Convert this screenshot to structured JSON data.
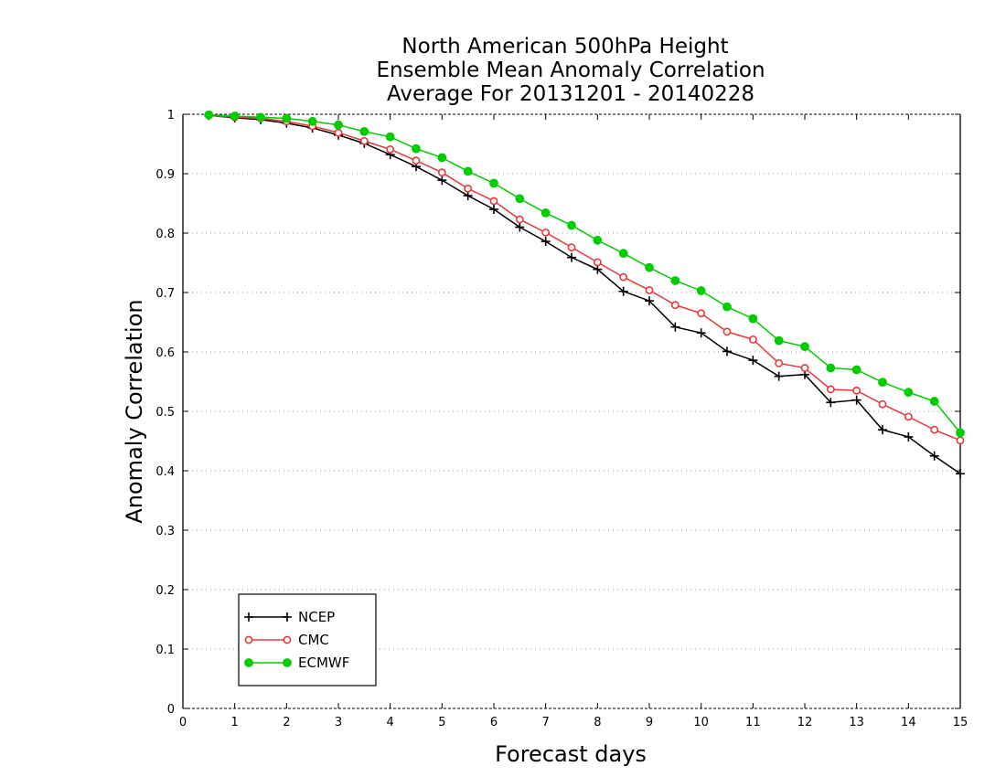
{
  "chart_data": {
    "type": "line",
    "title_lines": [
      "North American 500hPa Height",
      "Ensemble Mean Anomaly Correlation",
      "Average For 20131201 - 20140228"
    ],
    "xlabel": "Forecast days",
    "ylabel": "Anomaly Correlation",
    "xlim": [
      0,
      15
    ],
    "ylim": [
      0,
      1
    ],
    "x_ticks": [
      "0",
      "1",
      "2",
      "3",
      "4",
      "5",
      "6",
      "7",
      "8",
      "9",
      "10",
      "11",
      "12",
      "13",
      "14",
      "15"
    ],
    "y_ticks": [
      "0",
      "0.1",
      "0.2",
      "0.3",
      "0.4",
      "0.5",
      "0.6",
      "0.7",
      "0.8",
      "0.9",
      "1"
    ],
    "grid": "horizontal dotted",
    "legend_position": "bottom-left",
    "x": [
      0.5,
      1,
      1.5,
      2,
      2.5,
      3,
      3.5,
      4,
      4.5,
      5,
      5.5,
      6,
      6.5,
      7,
      7.5,
      8,
      8.5,
      9,
      9.5,
      10,
      10.5,
      11,
      11.5,
      12,
      12.5,
      13,
      13.5,
      14,
      14.5,
      15
    ],
    "series": [
      {
        "name": "NCEP",
        "color": "#000000",
        "marker": "plus",
        "values": [
          0.998,
          0.994,
          0.991,
          0.985,
          0.977,
          0.965,
          0.951,
          0.932,
          0.912,
          0.889,
          0.863,
          0.84,
          0.81,
          0.786,
          0.759,
          0.739,
          0.702,
          0.686,
          0.642,
          0.632,
          0.601,
          0.586,
          0.559,
          0.562,
          0.515,
          0.519,
          0.469,
          0.457,
          0.425,
          0.395
        ]
      },
      {
        "name": "CMC",
        "color": "#e8383c",
        "marker": "open-circle",
        "values": [
          0.998,
          0.995,
          0.993,
          0.988,
          0.98,
          0.969,
          0.955,
          0.941,
          0.922,
          0.902,
          0.875,
          0.854,
          0.823,
          0.801,
          0.776,
          0.751,
          0.726,
          0.704,
          0.679,
          0.665,
          0.634,
          0.621,
          0.581,
          0.573,
          0.537,
          0.535,
          0.512,
          0.491,
          0.469,
          0.451
        ]
      },
      {
        "name": "ECMWF",
        "color": "#00cc00",
        "marker": "filled-circle",
        "values": [
          0.999,
          0.997,
          0.995,
          0.993,
          0.988,
          0.982,
          0.971,
          0.962,
          0.942,
          0.927,
          0.904,
          0.884,
          0.858,
          0.834,
          0.813,
          0.788,
          0.766,
          0.742,
          0.72,
          0.703,
          0.676,
          0.656,
          0.619,
          0.609,
          0.573,
          0.57,
          0.549,
          0.532,
          0.517,
          0.464
        ]
      }
    ]
  }
}
